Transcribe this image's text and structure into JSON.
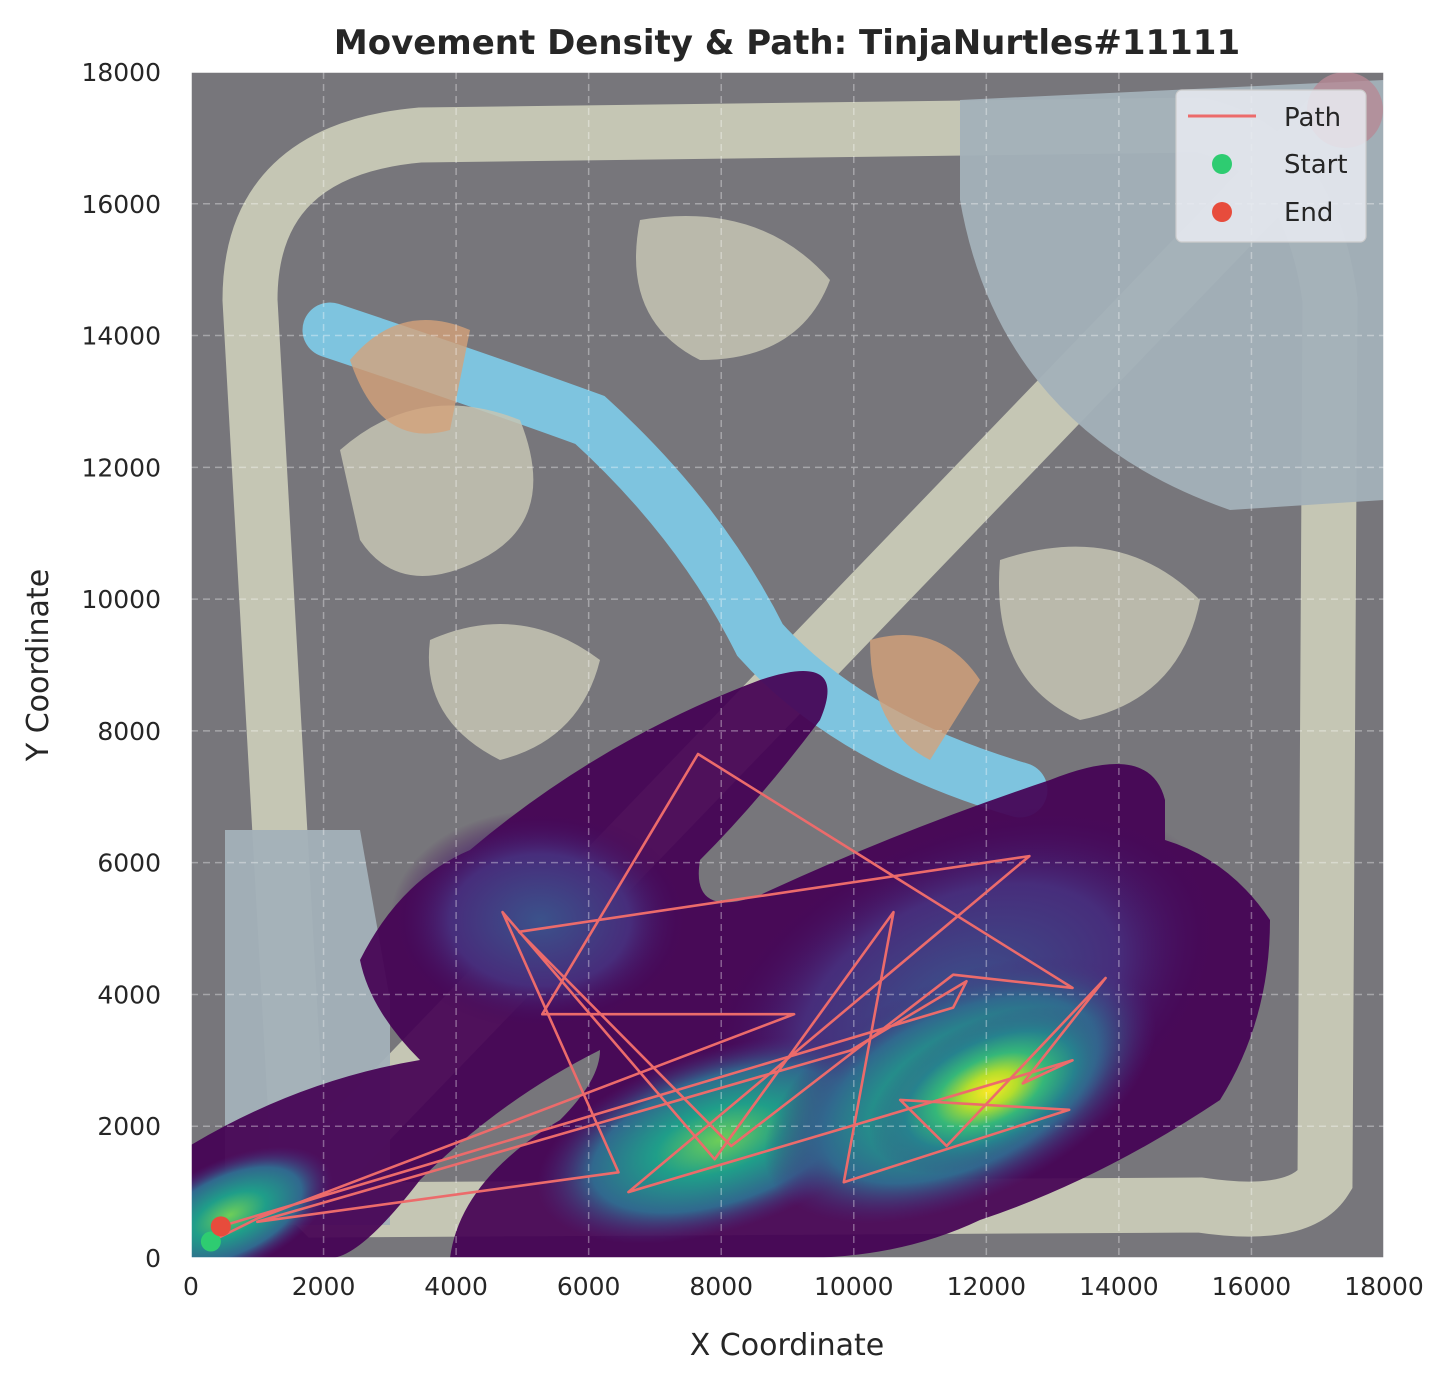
{
  "chart_data": {
    "type": "scatter",
    "title": "Movement Density & Path: TinjaNurtles#11111",
    "xlabel": "X Coordinate",
    "ylabel": "Y Coordinate",
    "xlim": [
      0,
      18000
    ],
    "ylim": [
      0,
      18000
    ],
    "x_ticks": [
      "0",
      "2000",
      "4000",
      "6000",
      "8000",
      "10000",
      "12000",
      "14000",
      "16000",
      "18000"
    ],
    "y_ticks": [
      "0",
      "2000",
      "4000",
      "6000",
      "8000",
      "10000",
      "12000",
      "14000",
      "16000",
      "18000"
    ],
    "grid": true,
    "legend_position": "top-right",
    "background": "map image with movement density heatmap (viridis)",
    "series": [
      {
        "name": "Path",
        "kind": "line",
        "color": "#ec6b6b",
        "points": [
          [
            300,
            250
          ],
          [
            1000,
            600
          ],
          [
            9100,
            3700
          ],
          [
            5300,
            3700
          ],
          [
            7650,
            7650
          ],
          [
            13300,
            4100
          ],
          [
            11500,
            4300
          ],
          [
            8150,
            1700
          ],
          [
            4950,
            4950
          ],
          [
            12650,
            6100
          ],
          [
            6600,
            1000
          ],
          [
            13300,
            3000
          ],
          [
            12550,
            2650
          ],
          [
            13800,
            4250
          ],
          [
            11400,
            1700
          ],
          [
            10700,
            2400
          ],
          [
            13250,
            2250
          ],
          [
            9850,
            1150
          ],
          [
            10600,
            5250
          ],
          [
            7900,
            1500
          ],
          [
            4700,
            5250
          ],
          [
            6450,
            1300
          ],
          [
            1000,
            550
          ],
          [
            9950,
            3150
          ],
          [
            11700,
            4200
          ],
          [
            11500,
            3800
          ],
          [
            450,
            480
          ]
        ]
      },
      {
        "name": "Start",
        "kind": "marker",
        "color": "#2ecc71",
        "points": [
          [
            300,
            250
          ]
        ]
      },
      {
        "name": "End",
        "kind": "marker",
        "color": "#e74c3c",
        "points": [
          [
            450,
            480
          ]
        ]
      }
    ],
    "density_hotspots": [
      {
        "x": 12300,
        "y": 2500,
        "level": 1.0
      },
      {
        "x": 8000,
        "y": 1800,
        "level": 0.75
      },
      {
        "x": 4800,
        "y": 4900,
        "level": 0.4
      },
      {
        "x": 400,
        "y": 400,
        "level": 0.6
      },
      {
        "x": 10500,
        "y": 5200,
        "level": 0.35
      }
    ]
  }
}
